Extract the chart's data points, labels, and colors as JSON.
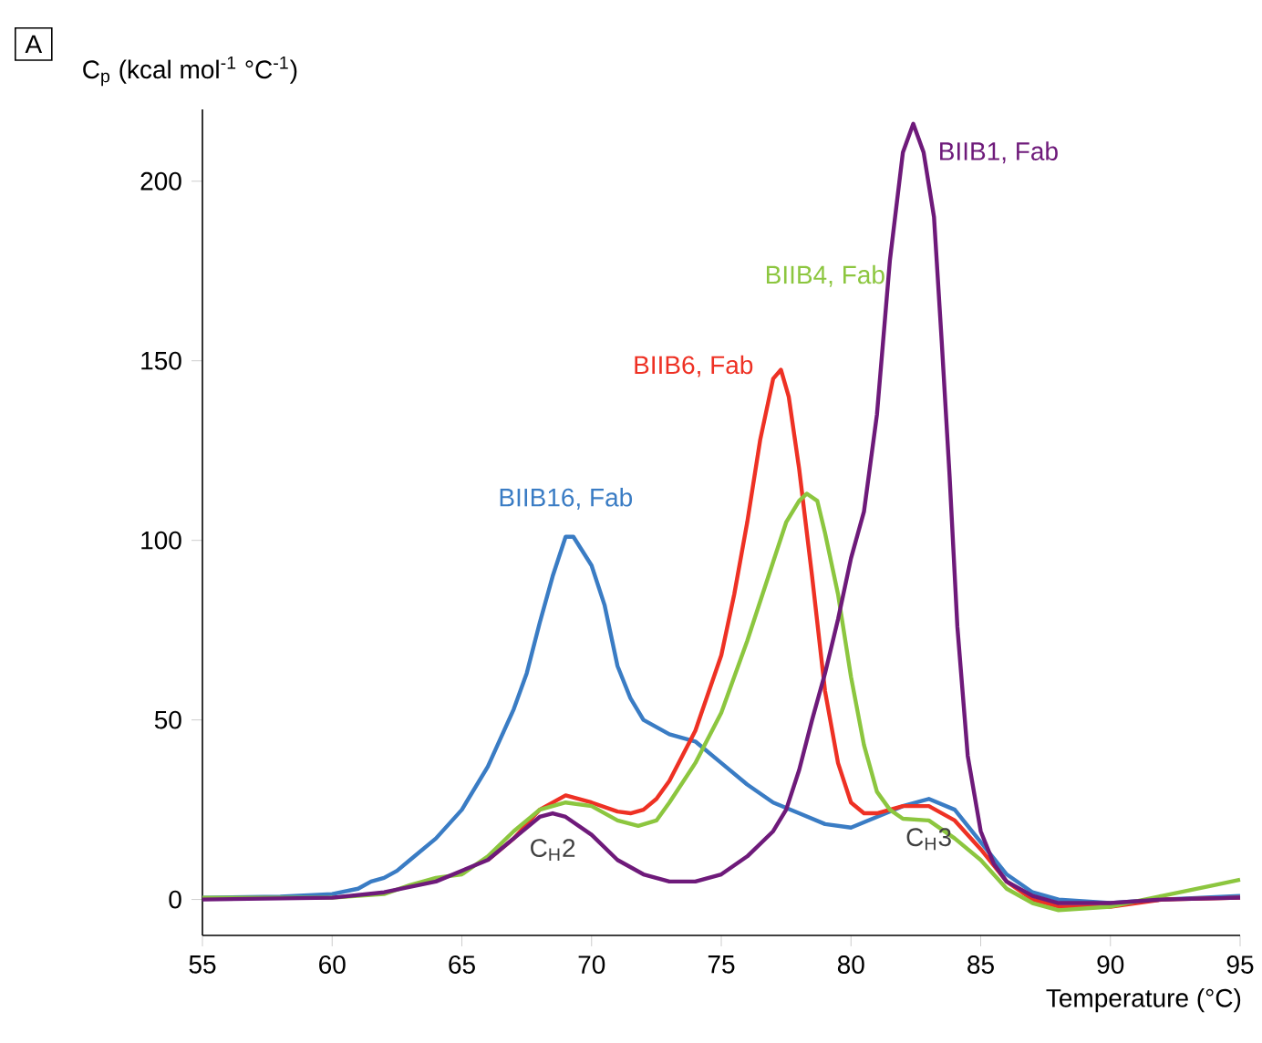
{
  "chart_data": {
    "type": "line",
    "title": "A",
    "ylabel": "C$_{p}$ (kcal mol$^{-1}$ °C$^{-1}$)",
    "xlabel": "Temperature (°C)",
    "xlim": [
      55,
      95
    ],
    "ylim": [
      -10,
      220
    ],
    "xticks": [
      55,
      60,
      65,
      70,
      75,
      80,
      85,
      90,
      95
    ],
    "yticks": [
      0,
      50,
      100,
      150,
      200
    ],
    "grid": false,
    "marker": "none",
    "line_style": "solid",
    "annotations": [
      {
        "text": "C$_{H}$2",
        "x": 68.5,
        "y": 24
      },
      {
        "text": "C$_{H}$3",
        "x": 83,
        "y": 27
      }
    ],
    "series": [
      {
        "name": "BIIB16, Fab",
        "color": "#3a7cc4",
        "x": [
          55,
          58,
          60,
          61,
          61.5,
          62,
          62.5,
          63,
          64,
          65,
          66,
          67,
          67.5,
          68,
          68.5,
          69,
          69.3,
          70,
          70.5,
          71,
          71.5,
          72,
          72.5,
          73,
          74,
          75,
          76,
          77,
          78,
          79,
          80,
          81,
          82,
          83,
          84,
          85,
          86,
          87,
          88,
          90,
          92,
          95
        ],
        "values": [
          0.5,
          0.8,
          1.5,
          3,
          5,
          6,
          8,
          11,
          17,
          25,
          37,
          53,
          63,
          77,
          90,
          101,
          101,
          93,
          82,
          65,
          56,
          50,
          48,
          46,
          44,
          38,
          32,
          27,
          24,
          21,
          20,
          23,
          26,
          28,
          25,
          16,
          7,
          2,
          0,
          -1,
          0,
          1
        ]
      },
      {
        "name": "BIIB6, Fab",
        "color": "#ee3124",
        "x": [
          66,
          67,
          68,
          69,
          70,
          71,
          71.5,
          72,
          72.5,
          73,
          74,
          75,
          75.5,
          76,
          76.5,
          77,
          77.3,
          77.6,
          78,
          78.5,
          79,
          79.5,
          80,
          80.5,
          81,
          82,
          83,
          84,
          85,
          86,
          87,
          88,
          90,
          92,
          95
        ],
        "values": [
          11,
          17,
          25,
          29,
          27,
          24.5,
          24,
          25,
          28,
          33,
          47,
          68,
          85,
          105,
          128,
          145,
          147.5,
          140,
          120,
          90,
          58,
          38,
          27,
          24,
          24,
          26,
          26,
          22,
          14,
          5,
          0,
          -2,
          -2,
          0,
          0.5
        ]
      },
      {
        "name": "BIIB4, Fab",
        "color": "#8cc63f",
        "x": [
          55,
          60,
          62,
          63,
          64,
          65,
          66,
          67,
          68,
          69,
          70,
          71,
          71.8,
          72.5,
          73,
          74,
          75,
          76,
          77,
          77.5,
          78,
          78.3,
          78.7,
          79,
          79.5,
          80,
          80.5,
          81,
          81.5,
          82,
          83,
          84,
          85,
          86,
          87,
          88,
          90,
          92,
          94,
          95
        ],
        "values": [
          0.5,
          0.5,
          1.5,
          4,
          6,
          7,
          12,
          19,
          25,
          27,
          26,
          22,
          20.5,
          22,
          27,
          38,
          52,
          72,
          94,
          105,
          111,
          113,
          111,
          102,
          85,
          62,
          43,
          30,
          25,
          22.5,
          22,
          17,
          11,
          3,
          -1,
          -3,
          -2,
          1,
          4,
          5.5
        ]
      },
      {
        "name": "BIIB1, Fab",
        "color": "#6e1a7a",
        "x": [
          55,
          60,
          62,
          64,
          66,
          67,
          68,
          68.5,
          69,
          70,
          71,
          72,
          73,
          74,
          75,
          76,
          77,
          77.5,
          78,
          78.5,
          79,
          79.5,
          80,
          80.5,
          81,
          81.5,
          82,
          82.4,
          82.8,
          83.2,
          83.5,
          83.8,
          84.1,
          84.5,
          85,
          85.5,
          86,
          87,
          88,
          90,
          92,
          95
        ],
        "values": [
          0,
          0.5,
          2,
          5,
          11,
          17,
          23,
          24,
          23,
          18,
          11,
          7,
          5,
          5,
          7,
          12,
          19,
          25,
          36,
          50,
          63,
          78,
          95,
          108,
          135,
          178,
          208,
          216,
          208,
          190,
          155,
          118,
          76,
          40,
          19,
          10,
          5,
          1,
          -1,
          -1,
          0,
          0.5
        ]
      }
    ]
  }
}
